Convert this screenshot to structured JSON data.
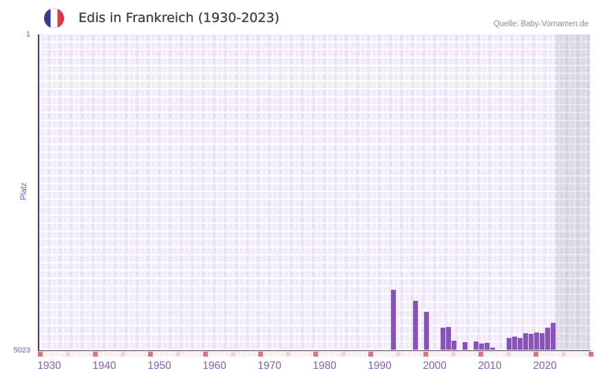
{
  "header": {
    "title": "Edis in Frankreich (1930-2023)",
    "source": "Quelle: Baby-Vornamen.de",
    "flag_icon": {
      "name": "france-flag",
      "blue": "#333d8f",
      "white": "#ffffff",
      "red": "#e23847"
    }
  },
  "chart_data": {
    "type": "bar",
    "title": "Edis in Frankreich (1930-2023)",
    "xlabel": "",
    "ylabel": "Platz",
    "y_axis_inverted": true,
    "y_ticks": [
      1,
      5023
    ],
    "ylim": [
      5023,
      1
    ],
    "x_ticks": [
      1930,
      1940,
      1950,
      1960,
      1970,
      1980,
      1990,
      2000,
      2010,
      2020
    ],
    "x_range": [
      1928,
      2028
    ],
    "grid": true,
    "legend": false,
    "bar_color": "#8655b6",
    "highlight_region": {
      "x_start": 2022,
      "x_end": 2028
    },
    "series": [
      {
        "name": "Platz",
        "x": [
          1992,
          1996,
          1998,
          2001,
          2002,
          2003,
          2005,
          2007,
          2008,
          2009,
          2010,
          2013,
          2014,
          2015,
          2016,
          2017,
          2018,
          2019,
          2020,
          2021
        ],
        "values": [
          4064,
          4236,
          4411,
          4667,
          4656,
          4875,
          4900,
          4889,
          4915,
          4911,
          4981,
          4834,
          4806,
          4834,
          4757,
          4768,
          4740,
          4754,
          4667,
          4593
        ]
      }
    ],
    "bottom_strip": {
      "cell_years_start": 1928,
      "pale_color": "#f8eef3",
      "mid_color": "#f4d0d9",
      "strong_color": "#e3707e",
      "mid_every": 5,
      "strong_every": 10
    }
  }
}
